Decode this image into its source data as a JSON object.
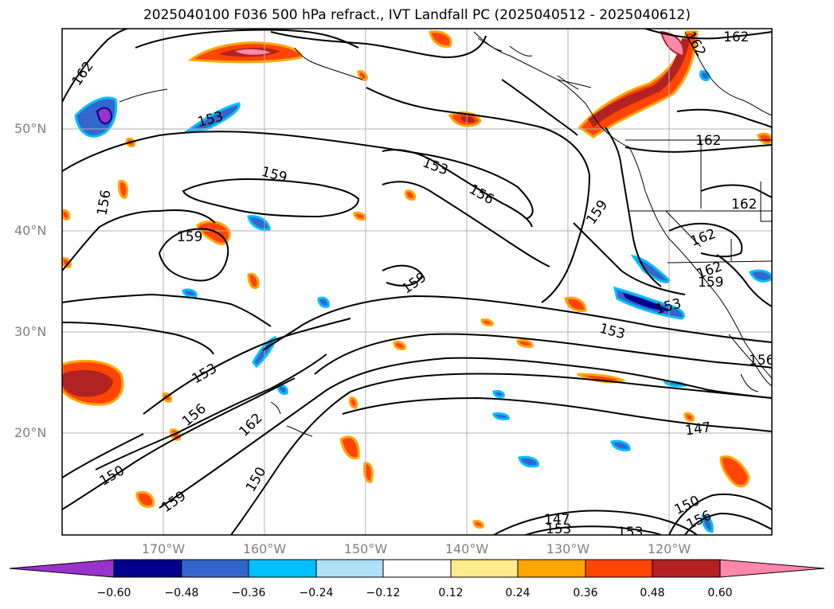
{
  "title": "2025040100 F036 500 hPa refract., IVT Landfall PC (2025040512 - 2025040612)",
  "latitude_labels": [
    "50°N",
    "40°N",
    "30°N",
    "20°N"
  ],
  "longitude_labels": [
    "170°W",
    "160°W",
    "150°W",
    "140°W",
    "130°W",
    "120°W"
  ],
  "contour_labels": [
    "162",
    "159",
    "156",
    "153",
    "150",
    "147"
  ],
  "colorbar": {
    "tick_labels": [
      "−0.60",
      "−0.48",
      "−0.36",
      "−0.24",
      "−0.12",
      "0.12",
      "0.24",
      "0.36",
      "0.48",
      "0.60"
    ],
    "colors": [
      "#9933cc",
      "#00008b",
      "#3366cc",
      "#00bfff",
      "#b0e0f8",
      "#ffffff",
      "#ffeb8c",
      "#ffa500",
      "#ff4500",
      "#b22222",
      "#ff88aa"
    ]
  },
  "grid": true
}
